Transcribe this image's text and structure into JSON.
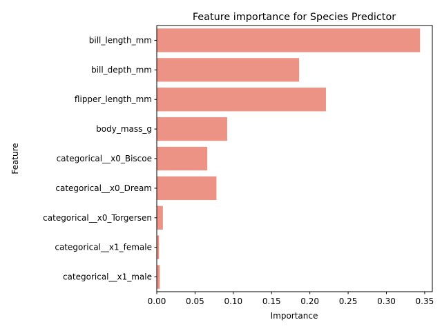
{
  "chart_data": {
    "type": "bar",
    "orientation": "horizontal",
    "title": "Feature importance for Species Predictor",
    "xlabel": "Importance",
    "ylabel": "Feature",
    "categories": [
      "bill_length_mm",
      "bill_depth_mm",
      "flipper_length_mm",
      "body_mass_g",
      "categorical__x0_Biscoe",
      "categorical__x0_Dream",
      "categorical__x0_Torgersen",
      "categorical__x1_female",
      "categorical__x1_male"
    ],
    "values": [
      0.344,
      0.186,
      0.221,
      0.092,
      0.066,
      0.078,
      0.008,
      0.003,
      0.004
    ],
    "xlim": [
      0,
      0.36
    ],
    "xticks": [
      0.0,
      0.05,
      0.1,
      0.15,
      0.2,
      0.25,
      0.3,
      0.35
    ],
    "xtick_labels": [
      "0.00",
      "0.05",
      "0.10",
      "0.15",
      "0.20",
      "0.25",
      "0.30",
      "0.35"
    ],
    "bar_color": "#ec9385",
    "grid": false
  }
}
